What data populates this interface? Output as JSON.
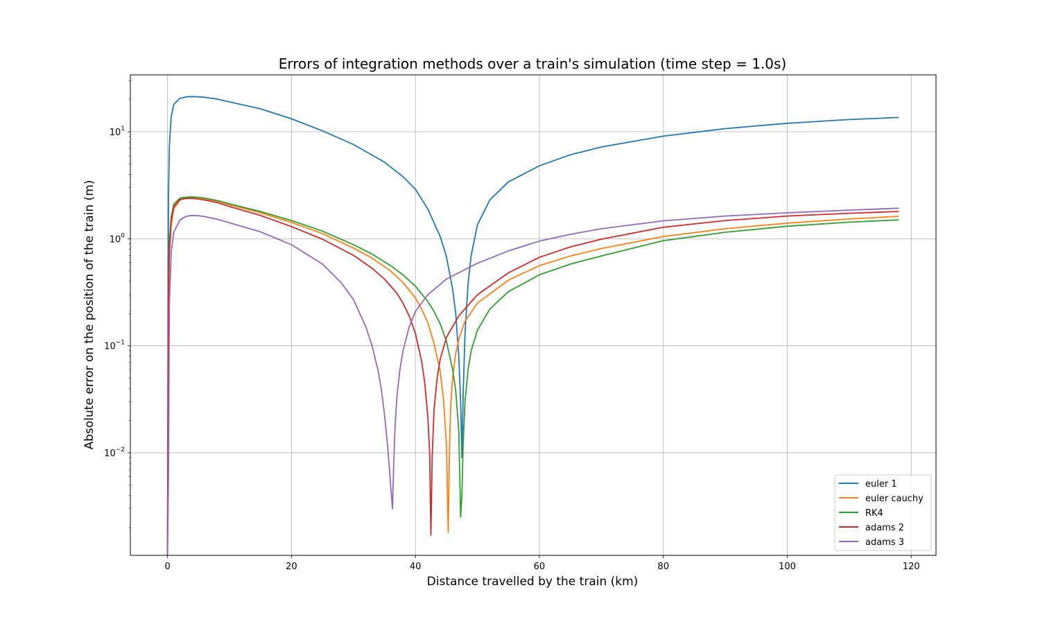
{
  "chart_data": {
    "type": "line",
    "title": "Errors of integration methods over a train's simulation (time step = 1.0s)",
    "xlabel": "Distance travelled by the train (km)",
    "ylabel": "Absolute error on the position of the train (m)",
    "xlim": [
      -6,
      124
    ],
    "ylim": [
      0.0011,
      34
    ],
    "yscale": "log",
    "x_ticks": [
      0,
      20,
      40,
      60,
      80,
      100,
      120
    ],
    "x_tick_labels": [
      "0",
      "20",
      "40",
      "60",
      "80",
      "100",
      "120"
    ],
    "y_ticks": [
      0.01,
      0.1,
      1,
      10
    ],
    "y_tick_labels": [
      {
        "base": "10",
        "exp": "−2"
      },
      {
        "base": "10",
        "exp": "−1"
      },
      {
        "base": "10",
        "exp": "0"
      },
      {
        "base": "10",
        "exp": "1"
      }
    ],
    "grid": true,
    "legend_position": "lower-right",
    "series": [
      {
        "name": "euler 1",
        "color": "#1f77b4",
        "x": [
          0,
          0.15,
          0.3,
          0.6,
          1,
          2,
          3,
          4,
          5,
          6,
          8,
          10,
          15,
          20,
          25,
          30,
          35,
          38,
          40,
          42,
          44,
          45,
          46,
          46.5,
          47,
          47.3,
          47.5,
          47.7,
          48,
          48.5,
          49,
          50,
          52,
          55,
          60,
          65,
          70,
          80,
          90,
          100,
          110,
          118
        ],
        "y": [
          0.0011,
          2.5,
          7.5,
          14,
          18,
          20.5,
          21.2,
          21.3,
          21.2,
          21,
          20.2,
          19,
          16.4,
          13.2,
          10.2,
          7.6,
          5.2,
          3.8,
          2.9,
          1.9,
          1.05,
          0.68,
          0.34,
          0.2,
          0.08,
          0.03,
          0.009,
          0.035,
          0.13,
          0.38,
          0.7,
          1.35,
          2.3,
          3.4,
          4.8,
          6.1,
          7.2,
          9.1,
          10.7,
          12,
          13,
          13.6
        ]
      },
      {
        "name": "euler cauchy",
        "color": "#ff7f0e",
        "x": [
          0,
          0.15,
          0.3,
          0.6,
          1,
          2,
          3,
          4,
          5,
          6,
          8,
          10,
          15,
          20,
          25,
          30,
          33,
          36,
          38,
          40,
          41,
          42,
          43,
          44,
          44.5,
          45,
          45.3,
          45.5,
          45.7,
          46,
          46.5,
          47,
          48,
          50,
          55,
          60,
          65,
          70,
          80,
          90,
          100,
          110,
          118
        ],
        "y": [
          0.0011,
          0.25,
          0.7,
          1.35,
          1.9,
          2.3,
          2.42,
          2.44,
          2.42,
          2.37,
          2.25,
          2.08,
          1.75,
          1.42,
          1.12,
          0.82,
          0.66,
          0.5,
          0.39,
          0.28,
          0.22,
          0.165,
          0.105,
          0.058,
          0.033,
          0.012,
          0.0018,
          0.011,
          0.028,
          0.05,
          0.085,
          0.115,
          0.17,
          0.25,
          0.41,
          0.56,
          0.69,
          0.81,
          1.05,
          1.24,
          1.4,
          1.53,
          1.62
        ]
      },
      {
        "name": "RK4",
        "color": "#2ca02c",
        "x": [
          0,
          0.15,
          0.3,
          0.6,
          1,
          2,
          3,
          4,
          5,
          6,
          8,
          10,
          15,
          20,
          25,
          30,
          33,
          36,
          38,
          40,
          42,
          43,
          44,
          45,
          46,
          46.5,
          47,
          47.3,
          47.5,
          47.7,
          48,
          48.5,
          49,
          50,
          52,
          55,
          60,
          65,
          70,
          80,
          90,
          100,
          110,
          118
        ],
        "y": [
          0.0011,
          0.4,
          0.95,
          1.6,
          2.1,
          2.4,
          2.45,
          2.46,
          2.44,
          2.4,
          2.28,
          2.12,
          1.8,
          1.48,
          1.18,
          0.88,
          0.72,
          0.56,
          0.46,
          0.36,
          0.26,
          0.21,
          0.16,
          0.11,
          0.06,
          0.038,
          0.016,
          0.0025,
          0.004,
          0.012,
          0.03,
          0.06,
          0.09,
          0.14,
          0.22,
          0.32,
          0.46,
          0.58,
          0.69,
          0.96,
          1.15,
          1.31,
          1.43,
          1.5
        ]
      },
      {
        "name": "adams 2",
        "color": "#d62728",
        "x": [
          0,
          0.15,
          0.3,
          0.6,
          1,
          2,
          3,
          4,
          5,
          6,
          8,
          10,
          15,
          20,
          25,
          30,
          33,
          35,
          37,
          38,
          39,
          40,
          41,
          41.5,
          42,
          42.3,
          42.5,
          42.7,
          43,
          43.5,
          44,
          45,
          47,
          50,
          55,
          60,
          65,
          70,
          80,
          90,
          100,
          110,
          118
        ],
        "y": [
          0.0011,
          0.3,
          0.8,
          1.5,
          2.0,
          2.32,
          2.38,
          2.38,
          2.35,
          2.3,
          2.18,
          2.0,
          1.65,
          1.3,
          0.99,
          0.7,
          0.53,
          0.42,
          0.31,
          0.25,
          0.19,
          0.13,
          0.072,
          0.045,
          0.022,
          0.01,
          0.0017,
          0.009,
          0.025,
          0.05,
          0.075,
          0.12,
          0.19,
          0.3,
          0.48,
          0.67,
          0.84,
          0.99,
          1.28,
          1.48,
          1.63,
          1.73,
          1.8
        ]
      },
      {
        "name": "adams 3",
        "color": "#9467bd",
        "x": [
          0,
          0.15,
          0.3,
          0.6,
          1,
          2,
          3,
          4,
          5,
          6,
          8,
          10,
          15,
          20,
          25,
          28,
          30,
          32,
          33,
          34,
          34.5,
          35,
          35.5,
          36,
          36.3,
          36.5,
          36.7,
          37,
          37.5,
          38,
          39,
          40,
          42,
          45,
          50,
          55,
          60,
          65,
          70,
          80,
          90,
          100,
          110,
          118
        ],
        "y": [
          0.0011,
          0.006,
          0.25,
          0.75,
          1.15,
          1.5,
          1.62,
          1.65,
          1.64,
          1.61,
          1.52,
          1.41,
          1.16,
          0.88,
          0.58,
          0.39,
          0.27,
          0.15,
          0.1,
          0.058,
          0.039,
          0.023,
          0.012,
          0.005,
          0.003,
          0.008,
          0.017,
          0.033,
          0.06,
          0.09,
          0.15,
          0.21,
          0.3,
          0.42,
          0.59,
          0.77,
          0.95,
          1.1,
          1.24,
          1.47,
          1.63,
          1.75,
          1.85,
          1.93
        ]
      }
    ]
  }
}
